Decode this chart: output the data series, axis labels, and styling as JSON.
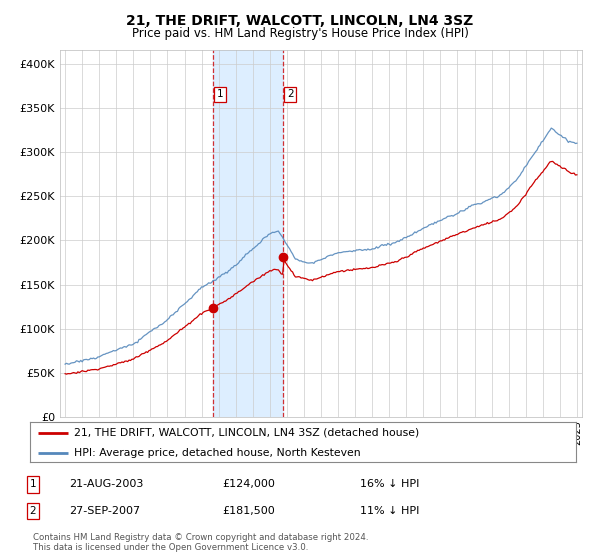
{
  "title": "21, THE DRIFT, WALCOTT, LINCOLN, LN4 3SZ",
  "subtitle": "Price paid vs. HM Land Registry's House Price Index (HPI)",
  "yticks": [
    0,
    50000,
    100000,
    150000,
    200000,
    250000,
    300000,
    350000,
    400000
  ],
  "ylim": [
    0,
    415000
  ],
  "xlim_start": 1994.7,
  "xlim_end": 2025.3,
  "sale1_date": 2003.64,
  "sale1_price": 124000,
  "sale2_date": 2007.75,
  "sale2_price": 181500,
  "sale1_display": "21-AUG-2003",
  "sale1_price_display": "£124,000",
  "sale1_hpi": "16% ↓ HPI",
  "sale2_display": "27-SEP-2007",
  "sale2_price_display": "£181,500",
  "sale2_hpi": "11% ↓ HPI",
  "legend_line1": "21, THE DRIFT, WALCOTT, LINCOLN, LN4 3SZ (detached house)",
  "legend_line2": "HPI: Average price, detached house, North Kesteven",
  "footer1": "Contains HM Land Registry data © Crown copyright and database right 2024.",
  "footer2": "This data is licensed under the Open Government Licence v3.0.",
  "sale_color": "#cc0000",
  "hpi_color": "#5588bb",
  "highlight_color": "#ddeeff",
  "background_color": "#ffffff",
  "grid_color": "#cccccc"
}
